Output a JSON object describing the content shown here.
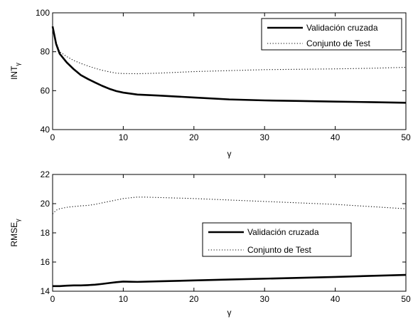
{
  "chart_data": [
    {
      "type": "line",
      "xlabel": "γ",
      "ylabel": "INT",
      "ylabel_sub": "γ",
      "xlim": [
        0,
        50
      ],
      "ylim": [
        40,
        100
      ],
      "xticks": [
        0,
        10,
        20,
        30,
        40,
        50
      ],
      "yticks": [
        40,
        60,
        80,
        100
      ],
      "legend_position": "top-right",
      "grid": false,
      "series": [
        {
          "name": "Validación cruzada",
          "style": "solid",
          "x": [
            0,
            0.5,
            1,
            2,
            3,
            4,
            5,
            6,
            7,
            8,
            9,
            10,
            12,
            15,
            20,
            25,
            30,
            35,
            40,
            45,
            50
          ],
          "y": [
            93,
            84,
            79,
            74.5,
            71,
            68,
            66,
            64.2,
            62.5,
            61,
            59.8,
            59,
            58,
            57.5,
            56.5,
            55.5,
            55,
            54.7,
            54.4,
            54.1,
            53.8
          ]
        },
        {
          "name": "Conjunto de Test",
          "style": "dotted",
          "x": [
            0,
            0.5,
            1,
            2,
            3,
            4,
            5,
            6,
            7,
            8,
            9,
            10,
            12,
            15,
            20,
            25,
            30,
            35,
            40,
            45,
            50
          ],
          "y": [
            93,
            85,
            80,
            77.5,
            75.5,
            74,
            72.7,
            71.5,
            70.5,
            69.7,
            69,
            68.8,
            68.7,
            69,
            69.8,
            70.3,
            70.8,
            71,
            71.2,
            71.5,
            72
          ]
        }
      ]
    },
    {
      "type": "line",
      "xlabel": "γ",
      "ylabel": "RMSE",
      "ylabel_sub": "γ",
      "xlim": [
        0,
        50
      ],
      "ylim": [
        14,
        22
      ],
      "xticks": [
        0,
        10,
        20,
        30,
        40,
        50
      ],
      "yticks": [
        14,
        16,
        18,
        20,
        22
      ],
      "legend_position": "center-right",
      "grid": false,
      "series": [
        {
          "name": "Validación cruzada",
          "style": "solid",
          "x": [
            0,
            1,
            2,
            3,
            4,
            5,
            6,
            7,
            8,
            9,
            10,
            11,
            12,
            15,
            20,
            25,
            30,
            35,
            40,
            45,
            50
          ],
          "y": [
            14.35,
            14.35,
            14.38,
            14.4,
            14.4,
            14.42,
            14.45,
            14.5,
            14.56,
            14.62,
            14.66,
            14.65,
            14.64,
            14.68,
            14.74,
            14.8,
            14.86,
            14.92,
            14.98,
            15.05,
            15.12
          ]
        },
        {
          "name": "Conjunto de Test",
          "style": "dotted",
          "x": [
            0,
            0.5,
            1,
            2,
            3,
            4,
            5,
            6,
            7,
            8,
            9,
            10,
            11,
            12,
            13,
            15,
            20,
            25,
            30,
            35,
            40,
            45,
            50
          ],
          "y": [
            19.3,
            19.55,
            19.65,
            19.75,
            19.8,
            19.85,
            19.88,
            19.95,
            20.05,
            20.15,
            20.25,
            20.35,
            20.4,
            20.45,
            20.45,
            20.42,
            20.35,
            20.25,
            20.15,
            20.05,
            19.95,
            19.8,
            19.65
          ]
        }
      ]
    }
  ]
}
